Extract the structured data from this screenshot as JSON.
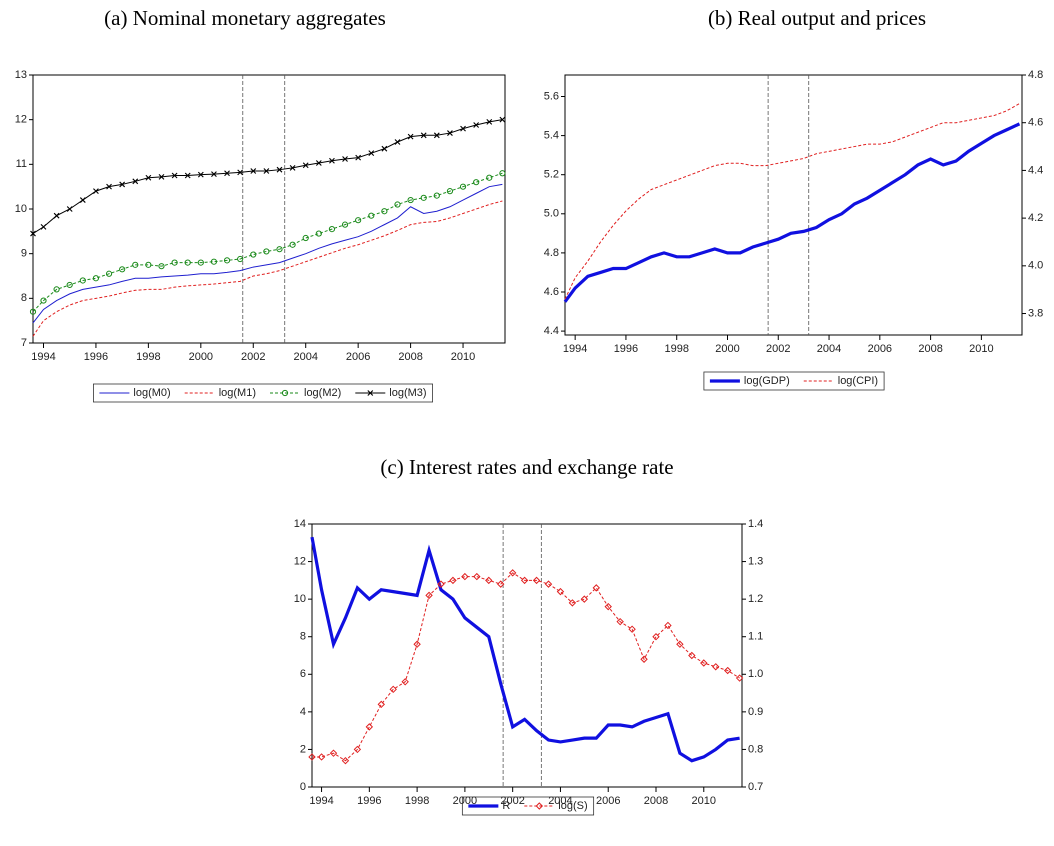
{
  "chart_data": [
    {
      "type": "line",
      "title": "(a) Nominal monetary aggregates",
      "x": [
        1993.6,
        1994,
        1994.5,
        1995,
        1995.5,
        1996,
        1996.5,
        1997,
        1997.5,
        1998,
        1998.5,
        1999,
        1999.5,
        2000,
        2000.5,
        2001,
        2001.5,
        2002,
        2002.5,
        2003,
        2003.5,
        2004,
        2004.5,
        2005,
        2005.5,
        2006,
        2006.5,
        2007,
        2007.5,
        2008,
        2008.5,
        2009,
        2009.5,
        2010,
        2010.5,
        2011,
        2011.5
      ],
      "xlim": [
        1993.6,
        2011.6
      ],
      "xticks": [
        1994,
        1996,
        1998,
        2000,
        2002,
        2004,
        2006,
        2008,
        2010
      ],
      "ylim": [
        7,
        13
      ],
      "yticks": [
        7,
        8,
        9,
        10,
        11,
        12,
        13
      ],
      "vlines": [
        2001.6,
        2003.2
      ],
      "series": [
        {
          "name": "log(M0)",
          "color": "#1f1fcf",
          "style": "solid",
          "marker": "none",
          "values": [
            7.45,
            7.75,
            7.95,
            8.1,
            8.2,
            8.25,
            8.3,
            8.38,
            8.45,
            8.45,
            8.48,
            8.5,
            8.52,
            8.55,
            8.55,
            8.58,
            8.62,
            8.7,
            8.75,
            8.8,
            8.9,
            9.0,
            9.12,
            9.22,
            9.3,
            9.38,
            9.5,
            9.65,
            9.8,
            10.05,
            9.9,
            9.95,
            10.05,
            10.2,
            10.35,
            10.5,
            10.55
          ]
        },
        {
          "name": "log(M1)",
          "color": "#e02020",
          "style": "dash",
          "marker": "none",
          "values": [
            7.15,
            7.5,
            7.7,
            7.85,
            7.95,
            8.0,
            8.05,
            8.12,
            8.18,
            8.2,
            8.2,
            8.25,
            8.28,
            8.3,
            8.32,
            8.35,
            8.38,
            8.5,
            8.55,
            8.62,
            8.72,
            8.82,
            8.92,
            9.02,
            9.12,
            9.2,
            9.3,
            9.4,
            9.52,
            9.65,
            9.7,
            9.72,
            9.8,
            9.9,
            10.0,
            10.1,
            10.18
          ]
        },
        {
          "name": "log(M2)",
          "color": "#1a8a1a",
          "style": "dash",
          "marker": "circle",
          "values": [
            7.7,
            7.95,
            8.2,
            8.3,
            8.4,
            8.45,
            8.55,
            8.65,
            8.75,
            8.75,
            8.72,
            8.8,
            8.8,
            8.8,
            8.82,
            8.85,
            8.88,
            8.98,
            9.05,
            9.1,
            9.2,
            9.35,
            9.45,
            9.55,
            9.65,
            9.75,
            9.85,
            9.95,
            10.1,
            10.2,
            10.25,
            10.3,
            10.4,
            10.5,
            10.6,
            10.7,
            10.8
          ]
        },
        {
          "name": "log(M3)",
          "color": "#000000",
          "style": "solid",
          "marker": "x",
          "values": [
            9.45,
            9.6,
            9.85,
            10.0,
            10.2,
            10.4,
            10.5,
            10.55,
            10.62,
            10.7,
            10.72,
            10.75,
            10.75,
            10.77,
            10.78,
            10.8,
            10.82,
            10.85,
            10.85,
            10.88,
            10.92,
            10.98,
            11.03,
            11.08,
            11.12,
            11.15,
            11.25,
            11.35,
            11.5,
            11.62,
            11.65,
            11.65,
            11.7,
            11.8,
            11.88,
            11.95,
            12.0
          ]
        }
      ]
    },
    {
      "type": "line",
      "title": "(b) Real output and prices",
      "x": [
        1993.6,
        1994,
        1994.5,
        1995,
        1995.5,
        1996,
        1996.5,
        1997,
        1997.5,
        1998,
        1998.5,
        1999,
        1999.5,
        2000,
        2000.5,
        2001,
        2001.5,
        2002,
        2002.5,
        2003,
        2003.5,
        2004,
        2004.5,
        2005,
        2005.5,
        2006,
        2006.5,
        2007,
        2007.5,
        2008,
        2008.5,
        2009,
        2009.5,
        2010,
        2010.5,
        2011,
        2011.5
      ],
      "xlim": [
        1993.6,
        2011.6
      ],
      "xticks": [
        1994,
        1996,
        1998,
        2000,
        2002,
        2004,
        2006,
        2008,
        2010
      ],
      "ylim": [
        4.38,
        5.71
      ],
      "yticks": [
        4.4,
        4.6,
        4.8,
        {
          "value": 5,
          "label": "5.0"
        },
        5.2,
        5.4,
        5.6
      ],
      "y2lim": [
        3.71,
        4.8
      ],
      "y2ticks": [
        3.8,
        {
          "value": 4,
          "label": "4.0"
        },
        4.2,
        4.4,
        4.6,
        4.8
      ],
      "vlines": [
        2001.6,
        2003.2
      ],
      "series": [
        {
          "name": "log(GDP)",
          "color": "#1010e0",
          "style": "thick",
          "marker": "none",
          "values": [
            4.55,
            4.62,
            4.68,
            4.7,
            4.72,
            4.72,
            4.75,
            4.78,
            4.8,
            4.78,
            4.78,
            4.8,
            4.82,
            4.8,
            4.8,
            4.83,
            4.85,
            4.87,
            4.9,
            4.91,
            4.93,
            4.97,
            5.0,
            5.05,
            5.08,
            5.12,
            5.16,
            5.2,
            5.25,
            5.28,
            5.25,
            5.27,
            5.32,
            5.36,
            5.4,
            5.43,
            5.46
          ]
        },
        {
          "name": "log(CPI)",
          "color": "#e02020",
          "style": "dash",
          "marker": "none",
          "axis": "y2",
          "values": [
            3.86,
            3.95,
            4.02,
            4.1,
            4.17,
            4.23,
            4.28,
            4.32,
            4.34,
            4.36,
            4.38,
            4.4,
            4.42,
            4.43,
            4.43,
            4.42,
            4.42,
            4.43,
            4.44,
            4.45,
            4.47,
            4.48,
            4.49,
            4.5,
            4.51,
            4.51,
            4.52,
            4.54,
            4.56,
            4.58,
            4.6,
            4.6,
            4.61,
            4.62,
            4.63,
            4.65,
            4.68
          ]
        }
      ]
    },
    {
      "type": "line",
      "title": "(c) Interest rates and exchange rate",
      "x": [
        1993.6,
        1994,
        1994.5,
        1995,
        1995.5,
        1996,
        1996.5,
        1997,
        1997.5,
        1998,
        1998.5,
        1999,
        1999.5,
        2000,
        2000.5,
        2001,
        2001.5,
        2002,
        2002.5,
        2003,
        2003.5,
        2004,
        2004.5,
        2005,
        2005.5,
        2006,
        2006.5,
        2007,
        2007.5,
        2008,
        2008.5,
        2009,
        2009.5,
        2010,
        2010.5,
        2011,
        2011.5
      ],
      "xlim": [
        1993.6,
        2011.6
      ],
      "xticks": [
        1994,
        1996,
        1998,
        2000,
        2002,
        2004,
        2006,
        2008,
        2010
      ],
      "ylim": [
        0,
        14
      ],
      "yticks": [
        0,
        2,
        4,
        6,
        8,
        10,
        12,
        14
      ],
      "y2lim": [
        0.7,
        1.4
      ],
      "y2ticks": [
        0.7,
        0.8,
        0.9,
        {
          "value": 1,
          "label": "1.0"
        },
        1.1,
        1.2,
        1.3,
        1.4
      ],
      "vlines": [
        2001.6,
        2003.2
      ],
      "series": [
        {
          "name": "R",
          "color": "#1010e0",
          "style": "thick",
          "marker": "none",
          "values": [
            13.3,
            10.5,
            7.6,
            9.0,
            10.6,
            10.0,
            10.5,
            10.4,
            10.3,
            10.2,
            12.6,
            10.5,
            10.0,
            9.0,
            8.5,
            8.0,
            5.5,
            3.2,
            3.6,
            3.0,
            2.5,
            2.4,
            2.5,
            2.6,
            2.6,
            3.3,
            3.3,
            3.2,
            3.5,
            3.7,
            3.9,
            1.8,
            1.4,
            1.6,
            2.0,
            2.5,
            2.6
          ]
        },
        {
          "name": "log(S)",
          "color": "#e02020",
          "style": "dash",
          "marker": "diamond",
          "axis": "y2",
          "values": [
            0.78,
            0.78,
            0.79,
            0.77,
            0.8,
            0.86,
            0.92,
            0.96,
            0.98,
            1.08,
            1.21,
            1.24,
            1.25,
            1.26,
            1.26,
            1.25,
            1.24,
            1.27,
            1.25,
            1.25,
            1.24,
            1.22,
            1.19,
            1.2,
            1.23,
            1.18,
            1.14,
            1.12,
            1.04,
            1.1,
            1.13,
            1.08,
            1.05,
            1.03,
            1.02,
            1.01,
            0.99
          ]
        }
      ]
    }
  ]
}
